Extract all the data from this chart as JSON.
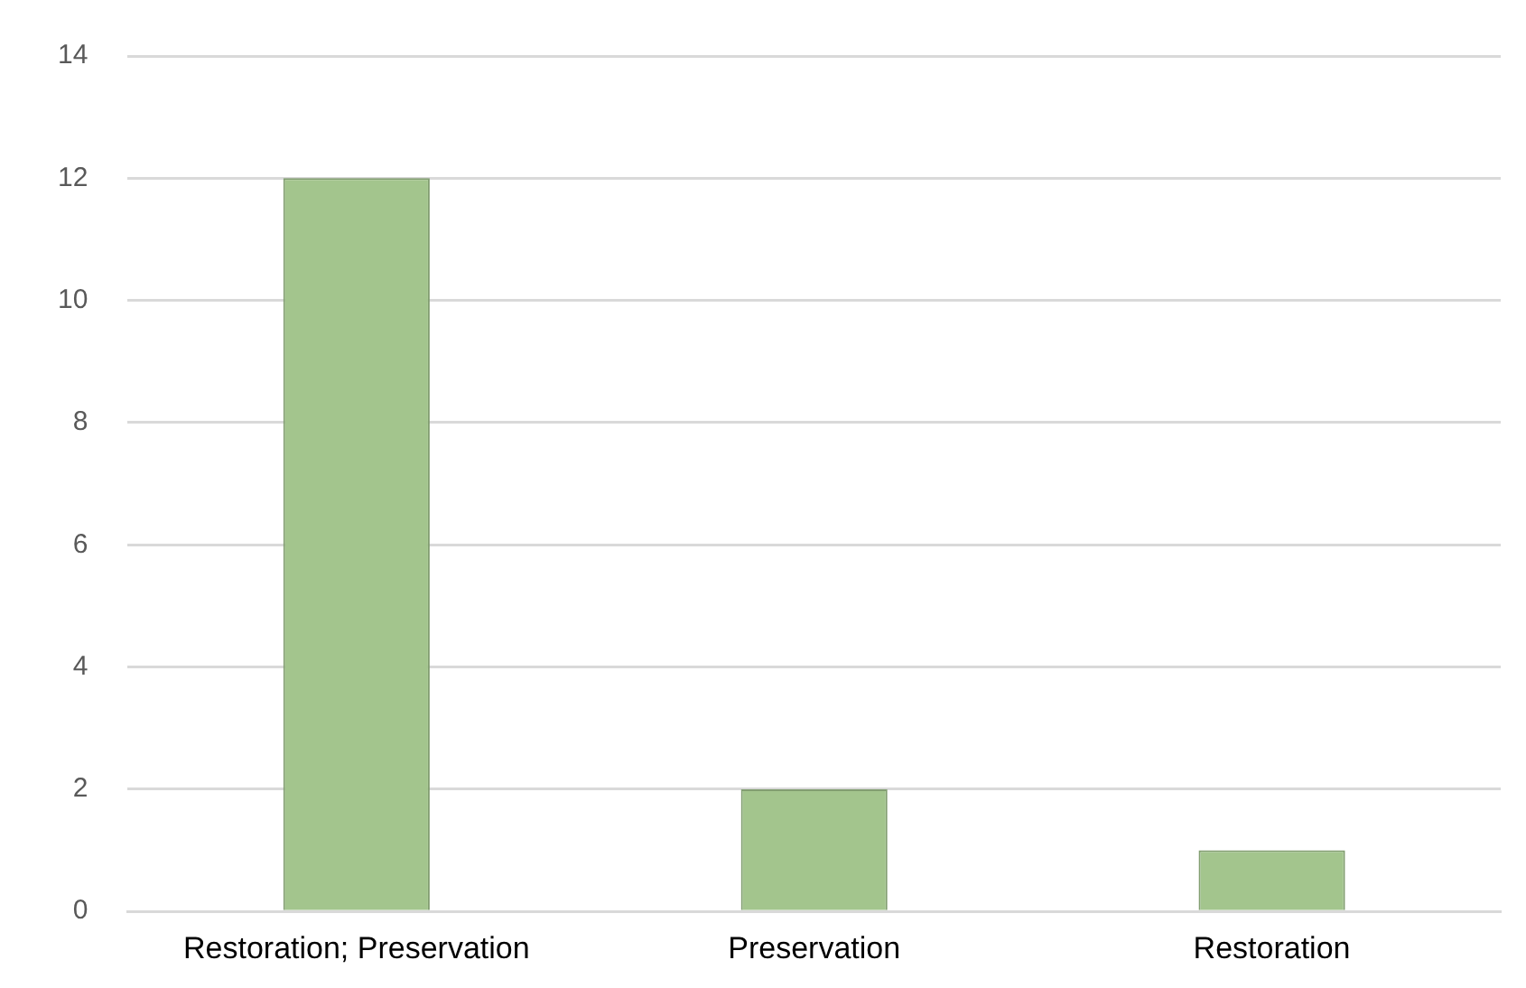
{
  "chart_data": {
    "type": "bar",
    "categories": [
      "Restoration; Preservation",
      "Preservation",
      "Restoration"
    ],
    "values": [
      12,
      2,
      1
    ],
    "color": "#a3c58d",
    "ylim": [
      0,
      14
    ],
    "yticks": [
      0,
      2,
      4,
      6,
      8,
      10,
      12,
      14
    ],
    "grid": "y",
    "legend": false
  }
}
